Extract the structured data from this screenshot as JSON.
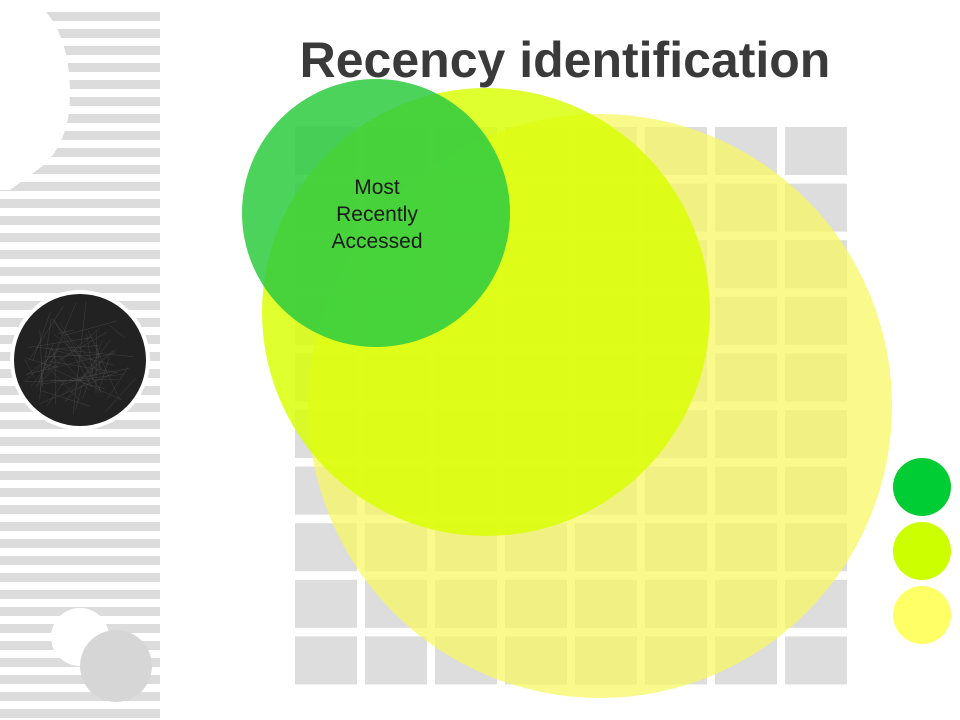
{
  "slide": {
    "title": "Recency identification",
    "circle_label": "Most\nRecently\nAccessed"
  },
  "colors": {
    "background": "#ffffff",
    "stripes": "#dcdcdc",
    "grid_cells": "#dddddd",
    "green": "#2ecc40",
    "lime": "#d8ff00",
    "yellow": "#f6f760",
    "dark_disc": "#222222"
  },
  "legend_dots": [
    {
      "name": "green",
      "color": "#00cc33"
    },
    {
      "name": "lime",
      "color": "#ccff00"
    },
    {
      "name": "yellow",
      "color": "#ffff66"
    }
  ]
}
